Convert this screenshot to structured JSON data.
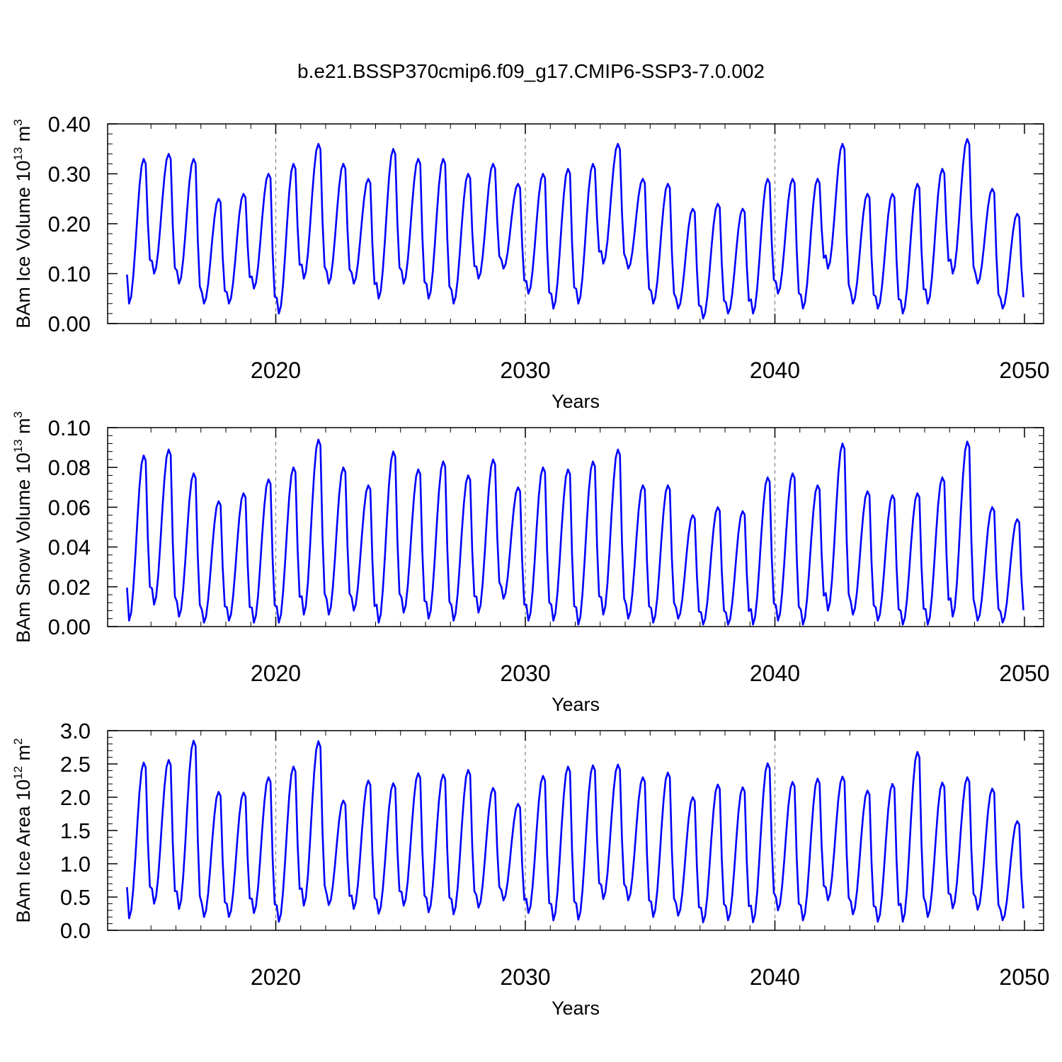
{
  "title": "b.e21.BSSP370cmip6.f09_g17.CMIP6-SSP3-7.0.002",
  "colors": {
    "line": "#0000ff",
    "axis": "#000000",
    "grid": "#808080"
  },
  "chart_data": [
    {
      "type": "line",
      "series_name": "BAm Ice Volume",
      "ylabel": "BAm Ice Volume",
      "ylabel_exp": "13",
      "ylabel_unit_exp": "3",
      "xlabel": "Years",
      "xlim": [
        2014,
        2050
      ],
      "ylim": [
        0,
        0.4
      ],
      "yticks": [
        "0.00",
        "0.10",
        "0.20",
        "0.30",
        "0.40"
      ],
      "ytick_values": [
        0,
        0.1,
        0.2,
        0.3,
        0.4
      ],
      "xticks": [
        "2020",
        "2030",
        "2040",
        "2050"
      ],
      "xtick_values": [
        2020,
        2030,
        2040,
        2050
      ],
      "grid_dashed_x": [
        2020,
        2030,
        2040
      ],
      "start": 2014.04,
      "step": 0.08333,
      "peaks": [
        0.33,
        0.34,
        0.33,
        0.25,
        0.26,
        0.3,
        0.32,
        0.36,
        0.32,
        0.29,
        0.35,
        0.33,
        0.33,
        0.3,
        0.32,
        0.28,
        0.3,
        0.31,
        0.32,
        0.36,
        0.29,
        0.28,
        0.23,
        0.24,
        0.23,
        0.29,
        0.29,
        0.29,
        0.36,
        0.26,
        0.26,
        0.28,
        0.31,
        0.37,
        0.27,
        0.22
      ],
      "troughs": [
        0.04,
        0.1,
        0.08,
        0.04,
        0.04,
        0.07,
        0.02,
        0.09,
        0.08,
        0.08,
        0.05,
        0.08,
        0.05,
        0.04,
        0.09,
        0.11,
        0.06,
        0.03,
        0.04,
        0.12,
        0.11,
        0.04,
        0.03,
        0.01,
        0.02,
        0.02,
        0.06,
        0.03,
        0.11,
        0.04,
        0.03,
        0.02,
        0.04,
        0.1,
        0.08,
        0.03
      ]
    },
    {
      "type": "line",
      "series_name": "BAm Snow Volume",
      "ylabel": "BAm Snow Volume",
      "ylabel_exp": "13",
      "ylabel_unit_exp": "3",
      "xlabel": "Years",
      "xlim": [
        2014,
        2050
      ],
      "ylim": [
        0,
        0.1
      ],
      "yticks": [
        "0.00",
        "0.02",
        "0.04",
        "0.06",
        "0.08",
        "0.10"
      ],
      "ytick_values": [
        0,
        0.02,
        0.04,
        0.06,
        0.08,
        0.1
      ],
      "xticks": [
        "2020",
        "2030",
        "2040",
        "2050"
      ],
      "xtick_values": [
        2020,
        2030,
        2040,
        2050
      ],
      "grid_dashed_x": [
        2020,
        2030,
        2040
      ],
      "start": 2014.04,
      "step": 0.08333,
      "peaks": [
        0.086,
        0.089,
        0.077,
        0.063,
        0.067,
        0.074,
        0.08,
        0.094,
        0.08,
        0.071,
        0.088,
        0.079,
        0.083,
        0.076,
        0.084,
        0.07,
        0.08,
        0.079,
        0.083,
        0.089,
        0.071,
        0.071,
        0.056,
        0.06,
        0.058,
        0.075,
        0.077,
        0.071,
        0.092,
        0.068,
        0.066,
        0.067,
        0.075,
        0.093,
        0.06,
        0.054
      ],
      "troughs": [
        0.003,
        0.011,
        0.005,
        0.002,
        0.003,
        0.002,
        0.002,
        0.006,
        0.006,
        0.008,
        0.002,
        0.007,
        0.004,
        0.003,
        0.007,
        0.014,
        0.003,
        0.003,
        0.001,
        0.006,
        0.004,
        0.002,
        0.004,
        0.001,
        0.001,
        0.001,
        0.003,
        0.001,
        0.008,
        0.006,
        0.003,
        0.001,
        0.001,
        0.005,
        0.003,
        0.002
      ]
    },
    {
      "type": "line",
      "series_name": "BAm Ice Area",
      "ylabel": "BAm Ice Area",
      "ylabel_exp": "12",
      "ylabel_unit_exp": "2",
      "xlabel": "Years",
      "xlim": [
        2014,
        2050
      ],
      "ylim": [
        0,
        3.0
      ],
      "yticks": [
        "0.0",
        "0.5",
        "1.0",
        "1.5",
        "2.0",
        "2.5",
        "3.0"
      ],
      "ytick_values": [
        0,
        0.5,
        1.0,
        1.5,
        2.0,
        2.5,
        3.0
      ],
      "xticks": [
        "2020",
        "2030",
        "2040",
        "2050"
      ],
      "xtick_values": [
        2020,
        2030,
        2040,
        2050
      ],
      "grid_dashed_x": [
        2020,
        2030,
        2040
      ],
      "start": 2014.04,
      "step": 0.08333,
      "peaks": [
        2.52,
        2.56,
        2.85,
        2.08,
        2.07,
        2.3,
        2.46,
        2.84,
        1.95,
        2.25,
        2.21,
        2.36,
        2.34,
        2.41,
        2.14,
        1.9,
        2.32,
        2.46,
        2.48,
        2.49,
        2.3,
        2.37,
        2.0,
        2.19,
        2.15,
        2.51,
        2.23,
        2.28,
        2.31,
        2.1,
        2.2,
        2.68,
        2.22,
        2.3,
        2.13,
        1.64
      ],
      "troughs": [
        0.18,
        0.4,
        0.32,
        0.2,
        0.2,
        0.26,
        0.13,
        0.37,
        0.38,
        0.32,
        0.25,
        0.37,
        0.27,
        0.24,
        0.34,
        0.45,
        0.26,
        0.15,
        0.16,
        0.47,
        0.45,
        0.2,
        0.22,
        0.12,
        0.15,
        0.12,
        0.3,
        0.15,
        0.45,
        0.24,
        0.13,
        0.13,
        0.2,
        0.33,
        0.31,
        0.15
      ]
    }
  ]
}
